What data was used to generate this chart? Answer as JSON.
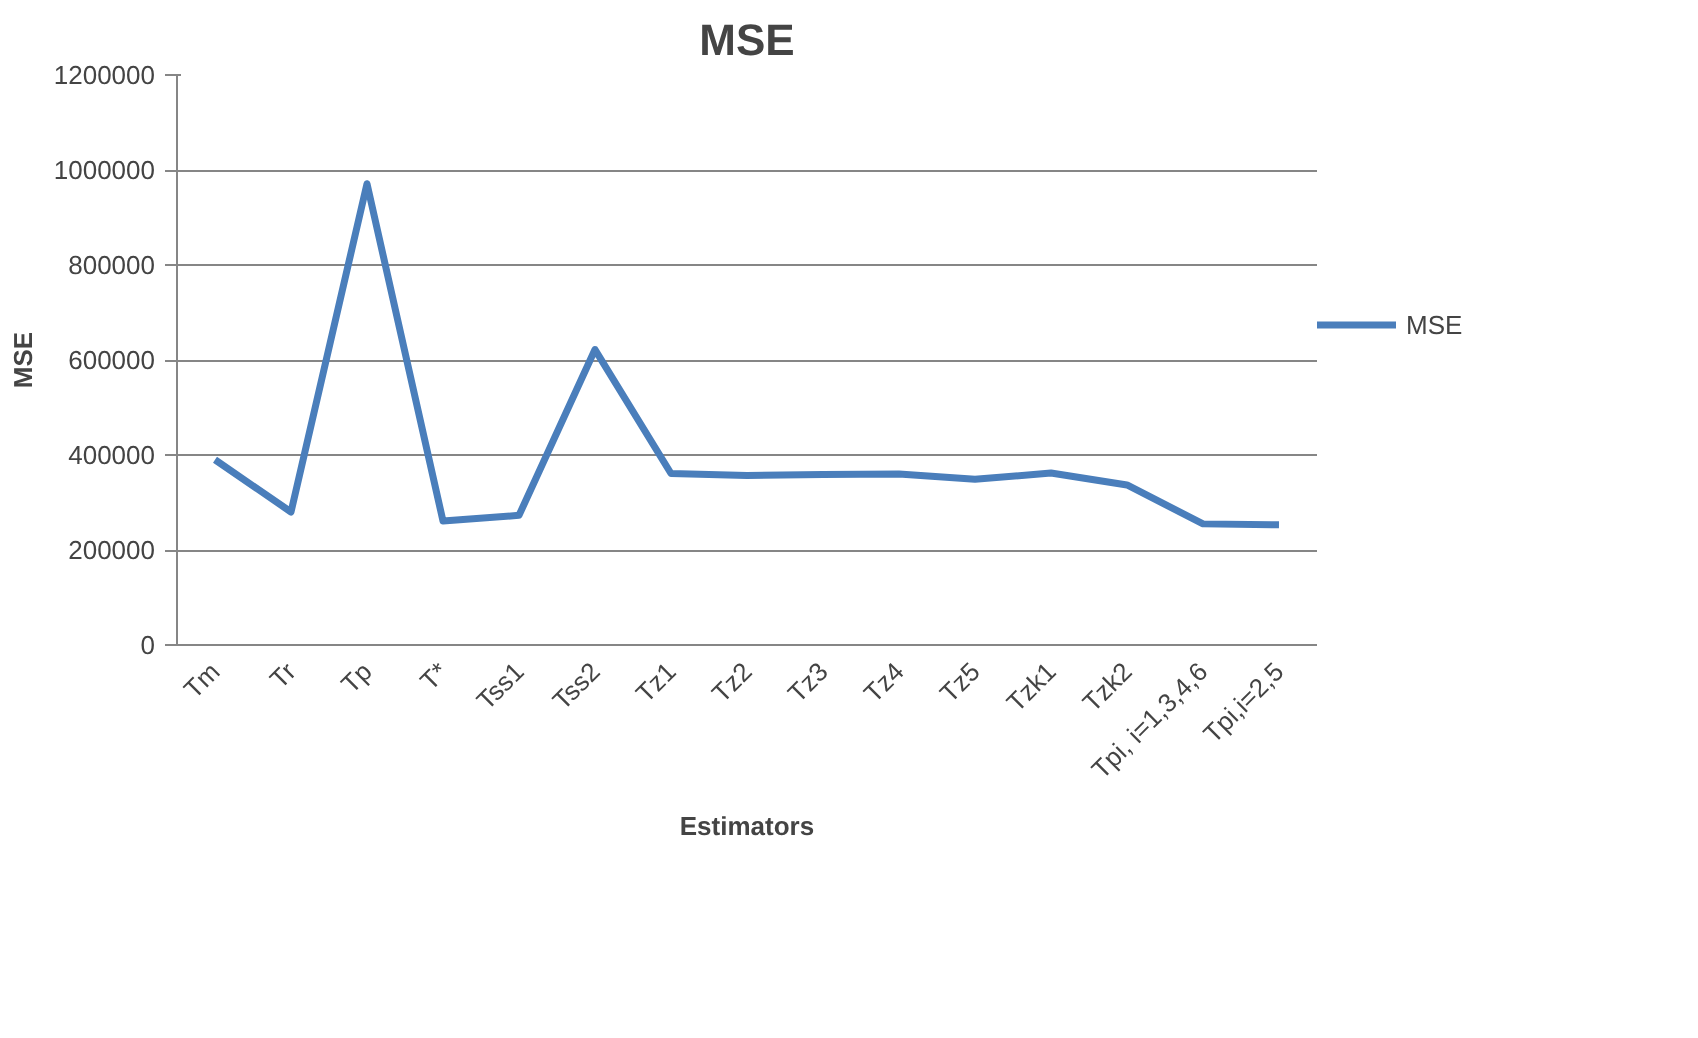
{
  "chart_data": {
    "type": "line",
    "title": "MSE",
    "xlabel": "Estimators",
    "ylabel": "MSE",
    "categories": [
      "Tm",
      "Tr",
      "Tp",
      "T*",
      "Tss1",
      "Tss2",
      "Tz1",
      "Tz2",
      "Tz3",
      "Tz4",
      "Tz5",
      "Tzk1",
      "Tzk2",
      "Tpi, i=1,3,4,6",
      "Tpi,i=2,5"
    ],
    "series": [
      {
        "name": "MSE",
        "color": "#4a7ebb",
        "values": [
          390000,
          280000,
          971000,
          261000,
          273000,
          622000,
          361000,
          357000,
          359000,
          360000,
          349000,
          362000,
          337000,
          255000,
          253000
        ]
      }
    ],
    "ylim": [
      0,
      1200000
    ],
    "yticks": [
      0,
      200000,
      400000,
      600000,
      800000,
      1000000,
      1200000
    ],
    "grid": "y",
    "legend": "right",
    "marker": "none",
    "line_style": "solid"
  }
}
